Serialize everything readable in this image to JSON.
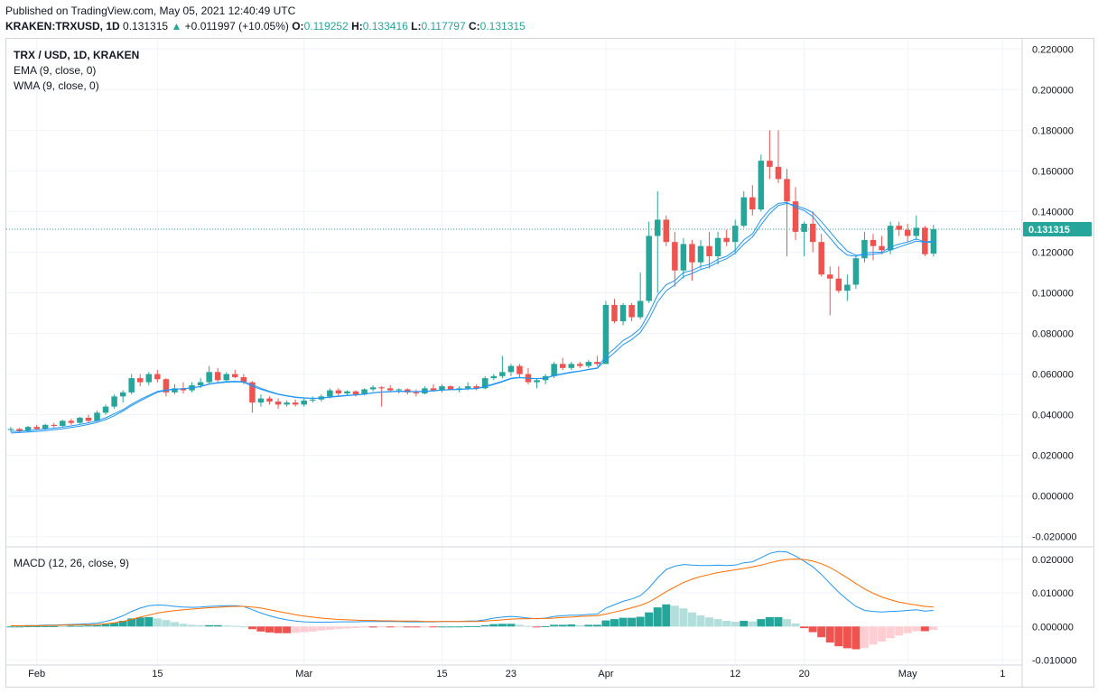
{
  "header": {
    "published": "Published on TradingView.com, May 05, 2021 12:40:49 UTC",
    "symbol": "KRAKEN:TRXUSD, 1D",
    "price": "0.131315",
    "change": "+0.011997 (+10.05%)",
    "o_label": "O:",
    "o_value": "0.119252",
    "h_label": "H:",
    "h_value": "0.133416",
    "l_label": "L:",
    "l_value": "0.117797",
    "c_label": "C:",
    "c_value": "0.131315"
  },
  "legend": {
    "title": "TRX / USD, 1D, KRAKEN",
    "ema": "EMA (9, close, 0)",
    "wma": "WMA (9, close, 0)",
    "macd": "MACD (12, 26, close, 9)"
  },
  "colors": {
    "up": "#26a69a",
    "down": "#ef5350",
    "ema": "#2196f3",
    "wma": "#2196f3",
    "macd_line": "#2196f3",
    "signal_line": "#ff6d00",
    "hist_up_strong": "#26a69a",
    "hist_up_weak": "#b2dfdb",
    "hist_down_strong": "#ef5350",
    "hist_down_weak": "#ffcdd2",
    "price_label_bg": "#26a69a"
  },
  "chart_data": [
    {
      "type": "candlestick",
      "title": "TRX / USD, 1D, KRAKEN",
      "ylim": [
        -0.025,
        0.225
      ],
      "y_ticks": [
        "0.220000",
        "0.200000",
        "0.180000",
        "0.160000",
        "0.140000",
        "0.120000",
        "0.100000",
        "0.080000",
        "0.060000",
        "0.040000",
        "0.020000",
        "0.000000",
        "-0.020000"
      ],
      "y_tick_values": [
        0.22,
        0.2,
        0.18,
        0.16,
        0.14,
        0.12,
        0.1,
        0.08,
        0.06,
        0.04,
        0.02,
        0.0,
        -0.02
      ],
      "x_ticks": [
        "Feb",
        "15",
        "Mar",
        "15",
        "23",
        "Apr",
        "12",
        "20",
        "May",
        "1"
      ],
      "x_tick_positions": [
        3,
        17,
        34,
        50,
        58,
        69,
        84,
        92,
        104,
        115
      ],
      "last_price": 0.131315,
      "last_price_label": "0.131315",
      "candles": [
        [
          0.0325,
          0.034,
          0.0315,
          0.033
        ],
        [
          0.033,
          0.0335,
          0.031,
          0.032
        ],
        [
          0.032,
          0.0345,
          0.0315,
          0.034
        ],
        [
          0.034,
          0.035,
          0.0325,
          0.033
        ],
        [
          0.033,
          0.0355,
          0.0325,
          0.035
        ],
        [
          0.035,
          0.036,
          0.0335,
          0.0345
        ],
        [
          0.0345,
          0.0375,
          0.034,
          0.037
        ],
        [
          0.037,
          0.038,
          0.035,
          0.036
        ],
        [
          0.036,
          0.039,
          0.0355,
          0.0385
        ],
        [
          0.0385,
          0.04,
          0.036,
          0.037
        ],
        [
          0.037,
          0.042,
          0.0365,
          0.041
        ],
        [
          0.041,
          0.045,
          0.04,
          0.044
        ],
        [
          0.044,
          0.05,
          0.043,
          0.049
        ],
        [
          0.049,
          0.052,
          0.046,
          0.051
        ],
        [
          0.051,
          0.06,
          0.05,
          0.058
        ],
        [
          0.058,
          0.06,
          0.054,
          0.056
        ],
        [
          0.056,
          0.061,
          0.0545,
          0.06
        ],
        [
          0.06,
          0.062,
          0.056,
          0.0575
        ],
        [
          0.0575,
          0.058,
          0.049,
          0.051
        ],
        [
          0.051,
          0.055,
          0.05,
          0.053
        ],
        [
          0.053,
          0.056,
          0.0505,
          0.052
        ],
        [
          0.052,
          0.056,
          0.051,
          0.0545
        ],
        [
          0.0545,
          0.058,
          0.053,
          0.056
        ],
        [
          0.056,
          0.064,
          0.055,
          0.061
        ],
        [
          0.061,
          0.063,
          0.056,
          0.057
        ],
        [
          0.057,
          0.061,
          0.056,
          0.06
        ],
        [
          0.06,
          0.062,
          0.058,
          0.0585
        ],
        [
          0.0585,
          0.06,
          0.055,
          0.056
        ],
        [
          0.056,
          0.0565,
          0.041,
          0.046
        ],
        [
          0.046,
          0.05,
          0.044,
          0.048
        ],
        [
          0.048,
          0.049,
          0.045,
          0.0465
        ],
        [
          0.0465,
          0.048,
          0.043,
          0.045
        ],
        [
          0.045,
          0.047,
          0.044,
          0.046
        ],
        [
          0.046,
          0.0475,
          0.044,
          0.045
        ],
        [
          0.045,
          0.048,
          0.044,
          0.047
        ],
        [
          0.047,
          0.049,
          0.046,
          0.0475
        ],
        [
          0.0475,
          0.05,
          0.0465,
          0.049
        ],
        [
          0.049,
          0.053,
          0.048,
          0.052
        ],
        [
          0.052,
          0.053,
          0.049,
          0.0505
        ],
        [
          0.0505,
          0.052,
          0.0495,
          0.0515
        ],
        [
          0.0515,
          0.052,
          0.049,
          0.05
        ],
        [
          0.05,
          0.053,
          0.0495,
          0.0525
        ],
        [
          0.0525,
          0.0545,
          0.0515,
          0.0535
        ],
        [
          0.0535,
          0.054,
          0.044,
          0.053
        ],
        [
          0.053,
          0.0545,
          0.0515,
          0.052
        ],
        [
          0.052,
          0.053,
          0.0505,
          0.0525
        ],
        [
          0.0525,
          0.053,
          0.05,
          0.051
        ],
        [
          0.051,
          0.0525,
          0.049,
          0.0505
        ],
        [
          0.0505,
          0.054,
          0.05,
          0.053
        ],
        [
          0.053,
          0.055,
          0.0515,
          0.052
        ],
        [
          0.052,
          0.055,
          0.051,
          0.054
        ],
        [
          0.054,
          0.0545,
          0.052,
          0.0525
        ],
        [
          0.0525,
          0.054,
          0.051,
          0.053
        ],
        [
          0.053,
          0.056,
          0.052,
          0.054
        ],
        [
          0.054,
          0.055,
          0.052,
          0.053
        ],
        [
          0.053,
          0.059,
          0.0525,
          0.058
        ],
        [
          0.058,
          0.06,
          0.057,
          0.059
        ],
        [
          0.059,
          0.069,
          0.058,
          0.061
        ],
        [
          0.061,
          0.065,
          0.059,
          0.064
        ],
        [
          0.064,
          0.065,
          0.058,
          0.06
        ],
        [
          0.06,
          0.063,
          0.055,
          0.056
        ],
        [
          0.056,
          0.058,
          0.053,
          0.057
        ],
        [
          0.057,
          0.06,
          0.055,
          0.059
        ],
        [
          0.059,
          0.066,
          0.058,
          0.065
        ],
        [
          0.065,
          0.068,
          0.062,
          0.063
        ],
        [
          0.063,
          0.066,
          0.062,
          0.065
        ],
        [
          0.065,
          0.066,
          0.063,
          0.064
        ],
        [
          0.064,
          0.067,
          0.063,
          0.066
        ],
        [
          0.066,
          0.069,
          0.064,
          0.065
        ],
        [
          0.065,
          0.096,
          0.065,
          0.094
        ],
        [
          0.094,
          0.097,
          0.085,
          0.086
        ],
        [
          0.086,
          0.095,
          0.084,
          0.094
        ],
        [
          0.094,
          0.095,
          0.086,
          0.088
        ],
        [
          0.088,
          0.11,
          0.087,
          0.096
        ],
        [
          0.096,
          0.135,
          0.095,
          0.128
        ],
        [
          0.128,
          0.15,
          0.1,
          0.136
        ],
        [
          0.136,
          0.138,
          0.123,
          0.125
        ],
        [
          0.125,
          0.13,
          0.103,
          0.111
        ],
        [
          0.111,
          0.127,
          0.107,
          0.124
        ],
        [
          0.124,
          0.126,
          0.106,
          0.115
        ],
        [
          0.115,
          0.126,
          0.112,
          0.123
        ],
        [
          0.123,
          0.13,
          0.112,
          0.118
        ],
        [
          0.118,
          0.13,
          0.114,
          0.127
        ],
        [
          0.127,
          0.131,
          0.123,
          0.125
        ],
        [
          0.125,
          0.136,
          0.119,
          0.133
        ],
        [
          0.133,
          0.15,
          0.132,
          0.147
        ],
        [
          0.147,
          0.153,
          0.138,
          0.141
        ],
        [
          0.141,
          0.168,
          0.14,
          0.165
        ],
        [
          0.165,
          0.18,
          0.156,
          0.162
        ],
        [
          0.162,
          0.18,
          0.154,
          0.156
        ],
        [
          0.156,
          0.161,
          0.118,
          0.145
        ],
        [
          0.145,
          0.152,
          0.126,
          0.13
        ],
        [
          0.13,
          0.135,
          0.118,
          0.134
        ],
        [
          0.134,
          0.14,
          0.12,
          0.125
        ],
        [
          0.125,
          0.129,
          0.108,
          0.109
        ],
        [
          0.109,
          0.113,
          0.089,
          0.107
        ],
        [
          0.107,
          0.113,
          0.1,
          0.101
        ],
        [
          0.101,
          0.109,
          0.096,
          0.104
        ],
        [
          0.104,
          0.118,
          0.102,
          0.117
        ],
        [
          0.117,
          0.13,
          0.115,
          0.126
        ],
        [
          0.126,
          0.129,
          0.116,
          0.123
        ],
        [
          0.123,
          0.128,
          0.119,
          0.121
        ],
        [
          0.121,
          0.135,
          0.119,
          0.133
        ],
        [
          0.133,
          0.135,
          0.128,
          0.131
        ],
        [
          0.131,
          0.134,
          0.125,
          0.128
        ],
        [
          0.128,
          0.138,
          0.126,
          0.132
        ],
        [
          0.132,
          0.133,
          0.118,
          0.119
        ],
        [
          0.1193,
          0.1334,
          0.1178,
          0.1313
        ]
      ],
      "ema_9": [
        0.0318,
        0.0319,
        0.0322,
        0.0326,
        0.033,
        0.0334,
        0.0339,
        0.0345,
        0.0352,
        0.036,
        0.037,
        0.0385,
        0.0405,
        0.0425,
        0.0452,
        0.0475,
        0.0495,
        0.0515,
        0.0522,
        0.0526,
        0.0528,
        0.0532,
        0.0538,
        0.055,
        0.0556,
        0.056,
        0.0562,
        0.056,
        0.054,
        0.0525,
        0.0512,
        0.05,
        0.0492,
        0.0485,
        0.0482,
        0.0481,
        0.0482,
        0.0488,
        0.0492,
        0.0496,
        0.0498,
        0.0502,
        0.0508,
        0.0512,
        0.0514,
        0.0516,
        0.0515,
        0.0514,
        0.0516,
        0.0518,
        0.0522,
        0.0524,
        0.0525,
        0.0528,
        0.0529,
        0.054,
        0.0552,
        0.0565,
        0.058,
        0.0584,
        0.058,
        0.0578,
        0.058,
        0.0594,
        0.0602,
        0.061,
        0.0615,
        0.0624,
        0.063,
        0.069,
        0.0725,
        0.0765,
        0.079,
        0.0825,
        0.09,
        0.099,
        0.104,
        0.106,
        0.11,
        0.111,
        0.113,
        0.114,
        0.1165,
        0.118,
        0.121,
        0.126,
        0.129,
        0.136,
        0.141,
        0.144,
        0.1445,
        0.142,
        0.1405,
        0.1375,
        0.132,
        0.127,
        0.122,
        0.1185,
        0.118,
        0.1195,
        0.12,
        0.12,
        0.1225,
        0.124,
        0.125,
        0.1265,
        0.125,
        0.1255
      ],
      "wma_9": [
        0.031,
        0.0312,
        0.0315,
        0.0318,
        0.0322,
        0.0326,
        0.0331,
        0.0337,
        0.0344,
        0.0352,
        0.0362,
        0.0376,
        0.0395,
        0.0418,
        0.0445,
        0.0468,
        0.049,
        0.051,
        0.052,
        0.0525,
        0.0528,
        0.0533,
        0.054,
        0.0552,
        0.0558,
        0.0563,
        0.0565,
        0.0562,
        0.0548,
        0.053,
        0.0515,
        0.0502,
        0.0494,
        0.0487,
        0.0483,
        0.0481,
        0.0482,
        0.0486,
        0.049,
        0.0494,
        0.0497,
        0.0501,
        0.0507,
        0.0511,
        0.0513,
        0.0515,
        0.0514,
        0.0513,
        0.0515,
        0.0517,
        0.0521,
        0.0523,
        0.0524,
        0.0527,
        0.0528,
        0.0537,
        0.0549,
        0.0562,
        0.0577,
        0.0582,
        0.0579,
        0.0577,
        0.058,
        0.0592,
        0.06,
        0.0608,
        0.0614,
        0.0622,
        0.0628,
        0.067,
        0.0705,
        0.0745,
        0.077,
        0.0805,
        0.087,
        0.0955,
        0.101,
        0.104,
        0.108,
        0.1095,
        0.1115,
        0.1128,
        0.115,
        0.1168,
        0.1195,
        0.124,
        0.1275,
        0.1335,
        0.139,
        0.143,
        0.144,
        0.143,
        0.1415,
        0.1395,
        0.135,
        0.13,
        0.125,
        0.1205,
        0.1185,
        0.1185,
        0.119,
        0.1195,
        0.121,
        0.1225,
        0.124,
        0.1255,
        0.1248,
        0.125
      ]
    },
    {
      "type": "macd",
      "title": "MACD (12, 26, close, 9)",
      "ylim": [
        -0.0115,
        0.0235
      ],
      "y_ticks": [
        "0.020000",
        "0.010000",
        "0.000000",
        "-0.010000"
      ],
      "y_tick_values": [
        0.02,
        0.01,
        0.0,
        -0.01
      ],
      "macd": [
        0.0002,
        0.0002,
        0.0003,
        0.0003,
        0.0004,
        0.0004,
        0.0005,
        0.0006,
        0.0007,
        0.0008,
        0.001,
        0.0015,
        0.0022,
        0.0032,
        0.0045,
        0.0055,
        0.0062,
        0.0064,
        0.0063,
        0.006,
        0.0058,
        0.0057,
        0.0058,
        0.006,
        0.0061,
        0.0062,
        0.0062,
        0.006,
        0.005,
        0.004,
        0.0032,
        0.0025,
        0.002,
        0.0016,
        0.0014,
        0.0013,
        0.0013,
        0.0013,
        0.0014,
        0.0014,
        0.0014,
        0.0015,
        0.0015,
        0.0015,
        0.0015,
        0.0015,
        0.0014,
        0.0014,
        0.0014,
        0.0014,
        0.0015,
        0.0015,
        0.0015,
        0.0016,
        0.0016,
        0.002,
        0.0025,
        0.0028,
        0.003,
        0.0028,
        0.0025,
        0.0023,
        0.0025,
        0.003,
        0.0032,
        0.0034,
        0.0034,
        0.0036,
        0.0037,
        0.0055,
        0.0065,
        0.0075,
        0.0082,
        0.0092,
        0.0115,
        0.0145,
        0.017,
        0.018,
        0.0185,
        0.0183,
        0.0182,
        0.0182,
        0.0183,
        0.0182,
        0.0183,
        0.019,
        0.0193,
        0.0205,
        0.0218,
        0.0224,
        0.0222,
        0.021,
        0.0195,
        0.0178,
        0.0155,
        0.0128,
        0.0102,
        0.008,
        0.006,
        0.0048,
        0.0045,
        0.0043,
        0.0045,
        0.0046,
        0.0048,
        0.005,
        0.0046,
        0.0048
      ],
      "signal": [
        0.0002,
        0.0002,
        0.0002,
        0.0002,
        0.0003,
        0.0003,
        0.0004,
        0.0004,
        0.0005,
        0.0005,
        0.0006,
        0.0008,
        0.0011,
        0.0015,
        0.0021,
        0.0028,
        0.0034,
        0.004,
        0.0044,
        0.0047,
        0.005,
        0.0052,
        0.0054,
        0.0056,
        0.0057,
        0.0059,
        0.006,
        0.006,
        0.0058,
        0.0055,
        0.005,
        0.0045,
        0.004,
        0.0035,
        0.0031,
        0.0028,
        0.0025,
        0.0023,
        0.0021,
        0.002,
        0.0019,
        0.0018,
        0.0018,
        0.0017,
        0.0017,
        0.0016,
        0.0016,
        0.0016,
        0.0015,
        0.0015,
        0.0015,
        0.0015,
        0.0015,
        0.0015,
        0.0015,
        0.0016,
        0.0018,
        0.002,
        0.0022,
        0.0023,
        0.0023,
        0.0024,
        0.0024,
        0.0025,
        0.0027,
        0.0028,
        0.003,
        0.0031,
        0.0032,
        0.0037,
        0.0043,
        0.0049,
        0.0056,
        0.0063,
        0.0073,
        0.0088,
        0.0104,
        0.0118,
        0.0131,
        0.0141,
        0.0149,
        0.0155,
        0.0161,
        0.0165,
        0.0169,
        0.0173,
        0.0178,
        0.0183,
        0.019,
        0.0196,
        0.02,
        0.0201,
        0.02,
        0.0195,
        0.0187,
        0.0176,
        0.0161,
        0.0145,
        0.0128,
        0.0112,
        0.0099,
        0.0088,
        0.008,
        0.0073,
        0.0068,
        0.0064,
        0.006,
        0.0058
      ]
    }
  ]
}
